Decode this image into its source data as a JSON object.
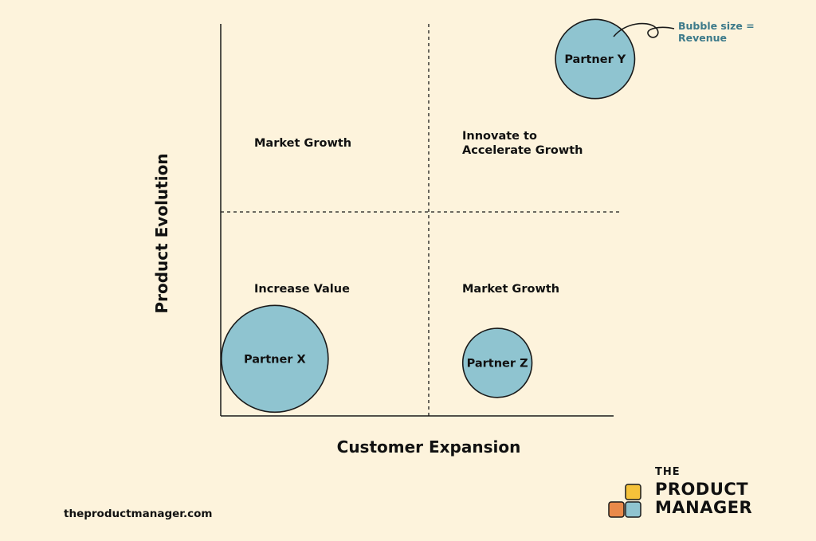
{
  "chart_data": {
    "type": "scatter",
    "subtype": "bubble",
    "xlabel": "Customer Expansion",
    "ylabel": "Product Evolution",
    "xlim": [
      0,
      2
    ],
    "ylim": [
      0,
      2
    ],
    "grid": false,
    "quadrant_dividers": {
      "x": 1,
      "y": 1,
      "style": "dashed"
    },
    "quadrant_labels": [
      {
        "id": "top-left",
        "text": "Market Growth"
      },
      {
        "id": "top-right",
        "lines": [
          "Innovate to",
          "Accelerate Growth"
        ]
      },
      {
        "id": "bottom-left",
        "text": "Increase Value"
      },
      {
        "id": "bottom-right",
        "text": "Market Growth"
      }
    ],
    "points": [
      {
        "name": "Partner X",
        "x": 0.26,
        "y": 0.28,
        "size": 1.0
      },
      {
        "name": "Partner Y",
        "x": 1.8,
        "y": 1.75,
        "size": 0.55
      },
      {
        "name": "Partner Z",
        "x": 1.33,
        "y": 0.26,
        "size": 0.42
      }
    ],
    "annotation": {
      "lines": [
        "Bubble size =",
        "Revenue"
      ]
    },
    "bubble_color": "#8fc4d0",
    "bubble_stroke": "#1a1a1a"
  },
  "footer": {
    "site": "theproductmanager.com",
    "brand": {
      "line1": "THE",
      "line2": "PRODUCT",
      "line3": "MANAGER"
    },
    "brand_colors": {
      "orange": "#e98a4a",
      "yellow": "#f5c23a",
      "blue": "#8fc4d0"
    }
  }
}
